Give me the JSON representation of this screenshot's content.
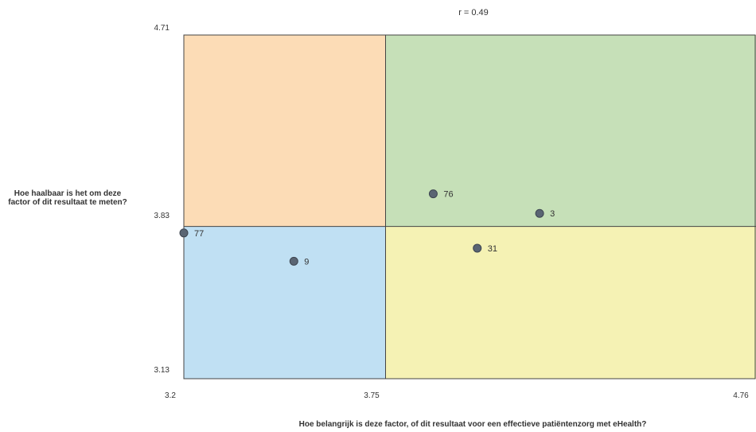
{
  "chart_data": {
    "type": "scatter",
    "title": "r = 0.49",
    "xlabel": "Hoe belangrijk is deze factor, of dit resultaat voor een effectieve patiëntenzorg met eHealth?",
    "ylabel": "Hoe haalbaar is het om deze factor of dit resultaat te meten?",
    "xlim": [
      3.2,
      4.76
    ],
    "ylim": [
      3.13,
      4.71
    ],
    "x_split": 3.75,
    "y_split": 3.83,
    "x_ticks": [
      "3.2",
      "3.75",
      "4.76"
    ],
    "y_ticks": [
      "4.71",
      "3.83",
      "3.13"
    ],
    "quadrant_colors": {
      "top_left": "#fcdcb6",
      "top_right": "#c6e0b8",
      "bottom_left": "#c0e0f3",
      "bottom_right": "#f5f2b4"
    },
    "point_color": "#5a6573",
    "points": [
      {
        "label": "77",
        "x": 3.2,
        "y": 3.8
      },
      {
        "label": "9",
        "x": 3.5,
        "y": 3.67
      },
      {
        "label": "76",
        "x": 3.88,
        "y": 3.98
      },
      {
        "label": "3",
        "x": 4.17,
        "y": 3.89
      },
      {
        "label": "31",
        "x": 4.0,
        "y": 3.73
      }
    ]
  }
}
